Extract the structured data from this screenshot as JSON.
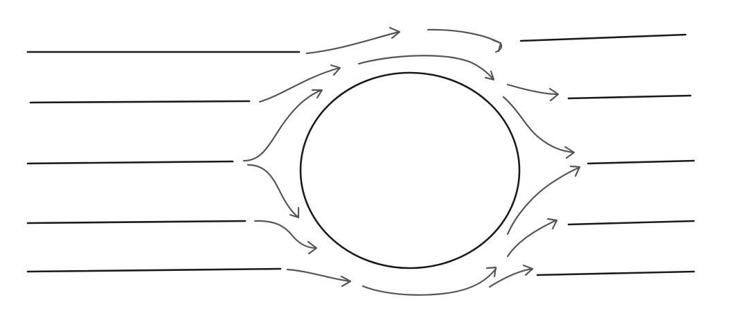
{
  "diagram": {
    "type": "streamlines-around-cylinder",
    "flow_direction": "left-to-right",
    "obstacle": "circle",
    "streamline_count": 5,
    "colors": {
      "background": "#ffffff",
      "straight_lines": "#1a1a1a",
      "curved_lines": "#555555",
      "obstacle_outline": "#1a1a1a"
    }
  }
}
